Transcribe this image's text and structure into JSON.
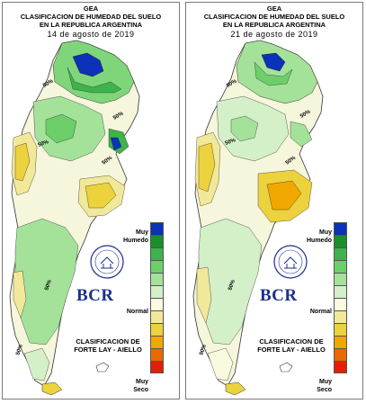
{
  "header": {
    "line1": "GEA",
    "line2": "CLASIFICACION DE HUMEDAD DEL SUELO",
    "line3": "EN LA REPUBLICA ARGENTINA"
  },
  "panels": [
    {
      "date": "14 de agosto de 2019",
      "contour_labels": [
        "50%",
        "50%",
        "50%",
        "50%",
        "50%",
        "50%"
      ]
    },
    {
      "date": "21 de agosto de 2019",
      "contour_labels": [
        "50%",
        "50%",
        "50%",
        "50%",
        "50%",
        "50%"
      ]
    }
  ],
  "logo": {
    "text": "BCR",
    "seal_text": "BOLSA DE COMERCIO DE ROSARIO"
  },
  "classification": {
    "line1": "CLASIFICACION DE",
    "line2": "FORTE LAY - AIELLO"
  },
  "legend": {
    "top_label_1": "Muy",
    "top_label_2": "Humedo",
    "mid_label": "Normal",
    "bottom_label_1": "Muy",
    "bottom_label_2": "Seco",
    "colors": [
      "#0b32b8",
      "#1a8f2c",
      "#3cb44b",
      "#6ccf6a",
      "#a4e29a",
      "#d3f0c8",
      "#fafae0",
      "#f2e89a",
      "#ecd23c",
      "#f0a800",
      "#e86a00",
      "#e02000"
    ]
  }
}
